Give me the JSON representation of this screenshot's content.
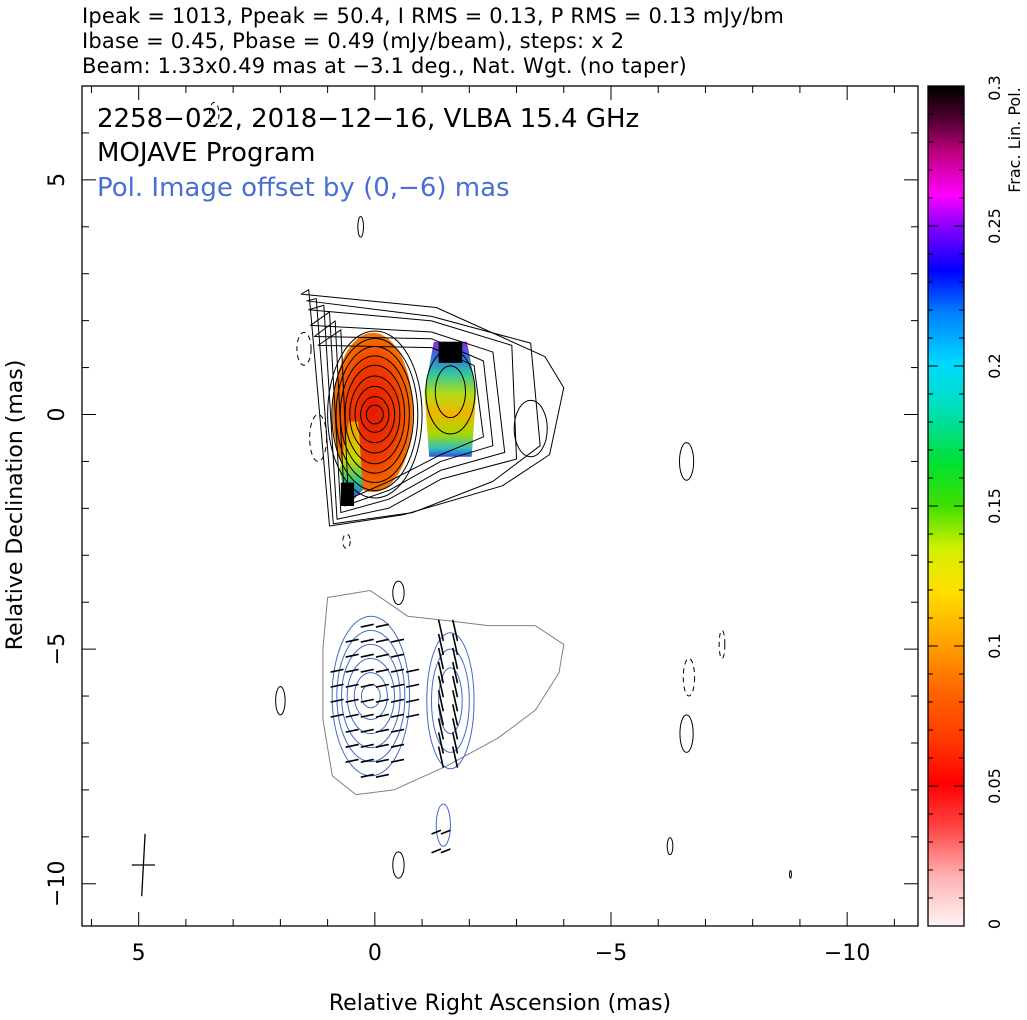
{
  "header": {
    "line1": "Ipeak = 1013, Ppeak = 50.4, I RMS = 0.13, P RMS = 0.13 mJy/bm",
    "line2": "Ibase = 0.45, Pbase = 0.49 (mJy/beam), steps: x 2",
    "line3": "Beam: 1.33x0.49 mas at −3.1 deg., Nat. Wgt. (no taper)"
  },
  "annotations": {
    "source": "2258−022, 2018−12−16, VLBA 15.4 GHz",
    "program": "MOJAVE Program",
    "offset_note": "Pol. Image offset by (0,−6) mas"
  },
  "colors": {
    "annotation_blue": "#4a6fd4",
    "pol_contour": "#4169c8",
    "outer_contour": "#808080"
  },
  "chart_data": {
    "type": "heatmap",
    "xlabel": "Relative Right Ascension (mas)",
    "ylabel": "Relative Declination (mas)",
    "xlim": [
      6.2,
      -11.5
    ],
    "ylim": [
      -10.9,
      7.0
    ],
    "x_ticks": [
      "5",
      "0",
      "−5",
      "−10"
    ],
    "x_tick_values": [
      5,
      0,
      -5,
      -10
    ],
    "y_ticks": [
      "5",
      "0",
      "−5",
      "−10"
    ],
    "y_tick_values": [
      5,
      0,
      -5,
      -10
    ],
    "colorbar": {
      "label": "Frac. Lin. Pol.",
      "range": [
        0,
        0.3
      ],
      "ticks": [
        "0",
        "0.05",
        "0.1",
        "0.15",
        "0.2",
        "0.25",
        "0.3"
      ],
      "tick_values": [
        0,
        0.05,
        0.1,
        0.15,
        0.2,
        0.25,
        0.3
      ]
    },
    "core": {
      "x": 0,
      "y": 0
    },
    "knot": {
      "x": -1.6,
      "y": 0.4
    },
    "beam": {
      "major_mas": 1.33,
      "minor_mas": 0.49,
      "pa_deg": -3.1,
      "x": 4.9,
      "y": -9.6
    },
    "polarization_offset_mas": [
      0,
      -6
    ]
  }
}
